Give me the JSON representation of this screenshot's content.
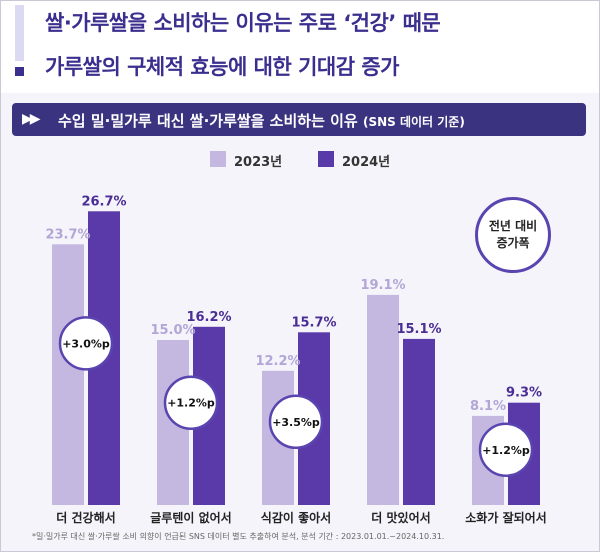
{
  "header": {
    "headline_line1": "쌀·가루쌀을 소비하는 이유는 주로 ‘건강’ 때문",
    "headline_line2": "가루쌀의 구체적 효능에 대한 기대감 증가"
  },
  "banner": {
    "arrows": "▶▶",
    "title": "수입 밀·밀가루 대신 쌀·가루쌀을 소비하는 이유",
    "subtitle": "(SNS 데이터 기준)"
  },
  "note": {
    "line1": "전년 대비",
    "line2": "증가폭"
  },
  "footnote": "*밀·밀가루 대신 쌀·가루쌀 소비 의향이 언급된 SNS 데이터 별도 추출하여 분석, 분석 기간 : 2023.01.01.~2024.10.31.",
  "colors": {
    "series_2023": "#c4b8e0",
    "series_2024": "#5a39a8",
    "label_2023": "#b3a6d6",
    "label_2024": "#4b2e95",
    "accent": "#3a2f8f"
  },
  "chart_data": {
    "type": "bar",
    "categories": [
      "더 건강해서",
      "글루텐이 없어서",
      "식감이 좋아서",
      "더 맛있어서",
      "소화가 잘되어서"
    ],
    "series": [
      {
        "name": "2023년",
        "values": [
          23.7,
          15.0,
          12.2,
          19.1,
          8.1
        ],
        "labels": [
          "23.7%",
          "15.0%",
          "12.2%",
          "19.1%",
          "8.1%"
        ]
      },
      {
        "name": "2024년",
        "values": [
          26.7,
          16.2,
          15.7,
          15.1,
          9.3
        ],
        "labels": [
          "26.7%",
          "16.2%",
          "15.7%",
          "15.1%",
          "9.3%"
        ]
      }
    ],
    "differences": [
      "+3.0%p",
      "+1.2%p",
      "+3.5%p",
      null,
      "+1.2%p"
    ],
    "ylim": [
      0,
      27
    ],
    "grid": false,
    "legend": "top-center"
  }
}
